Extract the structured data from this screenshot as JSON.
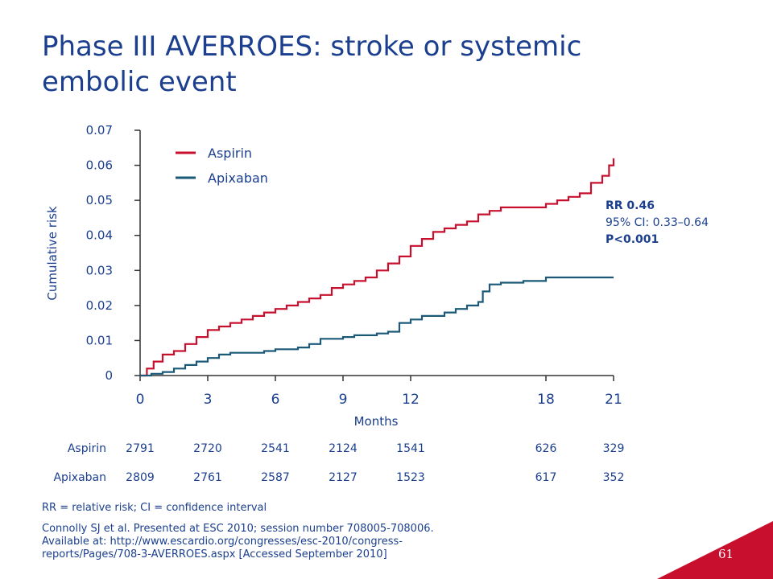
{
  "slide": {
    "title": "Phase III AVERROES: stroke or systemic embolic event",
    "page_number": "61",
    "footnote": "RR = relative risk; CI = confidence interval",
    "reference_lines": [
      "Connolly SJ et al. Presented at ESC 2010; session number 708005-708006.",
      "Available at: http://www.escardio.org/congresses/esc-2010/congress-",
      "reports/Pages/708-3-AVERROES.aspx [Accessed September 2010]"
    ]
  },
  "stats": {
    "rr": "RR 0.46",
    "ci": "95% CI: 0.33–0.64",
    "p": "P<0.001"
  },
  "colors": {
    "title": "#1b3f8e",
    "aspirin": "#c8102e",
    "apixaban": "#1a5a78",
    "corner": "#c8102e"
  },
  "chart_data": {
    "type": "line",
    "xlabel": "Months",
    "ylabel": "Cumulative risk",
    "xlim": [
      0,
      21
    ],
    "ylim": [
      0,
      0.07
    ],
    "xticks": [
      0,
      3,
      6,
      9,
      12,
      18,
      21
    ],
    "yticks": [
      0,
      0.01,
      0.02,
      0.03,
      0.04,
      0.05,
      0.06,
      0.07
    ],
    "xtick_labels": [
      "0",
      "3",
      "6",
      "9",
      "12",
      "18",
      "21"
    ],
    "ytick_labels": [
      "0",
      "0.01",
      "0.02",
      "0.03",
      "0.04",
      "0.05",
      "0.06",
      "0.07"
    ],
    "legend_position": "top-left",
    "series": [
      {
        "name": "Aspirin",
        "points": [
          [
            0,
            0
          ],
          [
            0.3,
            0.002
          ],
          [
            0.6,
            0.004
          ],
          [
            1.0,
            0.006
          ],
          [
            1.5,
            0.007
          ],
          [
            2.0,
            0.009
          ],
          [
            2.5,
            0.011
          ],
          [
            3.0,
            0.013
          ],
          [
            3.5,
            0.014
          ],
          [
            4.0,
            0.015
          ],
          [
            4.5,
            0.016
          ],
          [
            5.0,
            0.017
          ],
          [
            5.5,
            0.018
          ],
          [
            6.0,
            0.019
          ],
          [
            6.5,
            0.02
          ],
          [
            7.0,
            0.021
          ],
          [
            7.5,
            0.022
          ],
          [
            8.0,
            0.023
          ],
          [
            8.5,
            0.025
          ],
          [
            9.0,
            0.026
          ],
          [
            9.5,
            0.027
          ],
          [
            10.0,
            0.028
          ],
          [
            10.5,
            0.03
          ],
          [
            11.0,
            0.032
          ],
          [
            11.5,
            0.034
          ],
          [
            12.0,
            0.037
          ],
          [
            12.5,
            0.039
          ],
          [
            13.0,
            0.041
          ],
          [
            13.5,
            0.042
          ],
          [
            14.0,
            0.043
          ],
          [
            14.5,
            0.044
          ],
          [
            15.0,
            0.046
          ],
          [
            15.5,
            0.047
          ],
          [
            16.0,
            0.048
          ],
          [
            17.0,
            0.048
          ],
          [
            18.0,
            0.049
          ],
          [
            18.5,
            0.05
          ],
          [
            19.0,
            0.051
          ],
          [
            19.5,
            0.052
          ],
          [
            20.0,
            0.055
          ],
          [
            20.5,
            0.057
          ],
          [
            20.8,
            0.06
          ],
          [
            21.0,
            0.062
          ]
        ]
      },
      {
        "name": "Apixaban",
        "points": [
          [
            0,
            0
          ],
          [
            0.5,
            0.0005
          ],
          [
            1.0,
            0.001
          ],
          [
            1.5,
            0.002
          ],
          [
            2.0,
            0.003
          ],
          [
            2.5,
            0.004
          ],
          [
            3.0,
            0.005
          ],
          [
            3.5,
            0.006
          ],
          [
            4.0,
            0.0065
          ],
          [
            5.0,
            0.0065
          ],
          [
            5.5,
            0.007
          ],
          [
            6.0,
            0.0075
          ],
          [
            7.0,
            0.008
          ],
          [
            7.5,
            0.009
          ],
          [
            8.0,
            0.0105
          ],
          [
            9.0,
            0.011
          ],
          [
            9.5,
            0.0115
          ],
          [
            10.5,
            0.012
          ],
          [
            11.0,
            0.0125
          ],
          [
            11.5,
            0.015
          ],
          [
            12.0,
            0.016
          ],
          [
            12.5,
            0.017
          ],
          [
            13.5,
            0.018
          ],
          [
            14.0,
            0.019
          ],
          [
            14.5,
            0.02
          ],
          [
            15.0,
            0.021
          ],
          [
            15.2,
            0.024
          ],
          [
            15.5,
            0.026
          ],
          [
            16.0,
            0.0265
          ],
          [
            17.0,
            0.027
          ],
          [
            18.0,
            0.028
          ],
          [
            21.0,
            0.028
          ]
        ]
      }
    ],
    "at_risk": {
      "x": [
        0,
        3,
        6,
        9,
        12,
        18,
        21
      ],
      "rows": [
        {
          "label": "Aspirin",
          "values": [
            "2791",
            "2720",
            "2541",
            "2124",
            "1541",
            "626",
            "329"
          ]
        },
        {
          "label": "Apixaban",
          "values": [
            "2809",
            "2761",
            "2587",
            "2127",
            "1523",
            "617",
            "352"
          ]
        }
      ]
    }
  }
}
